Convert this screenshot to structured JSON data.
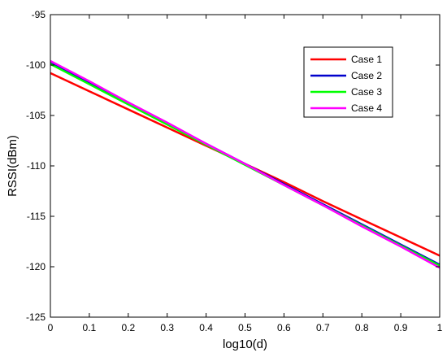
{
  "chart_data": {
    "type": "line",
    "title": "",
    "xlabel": "log10(d)",
    "ylabel": "RSSI(dBm)",
    "xlim": [
      0,
      1
    ],
    "ylim": [
      -125,
      -95
    ],
    "x_ticks": [
      0,
      0.1,
      0.2,
      0.3,
      0.4,
      0.5,
      0.6,
      0.7,
      0.8,
      0.9,
      1
    ],
    "x_tick_labels": [
      "0",
      "0.1",
      "0.2",
      "0.3",
      "0.4",
      "0.5",
      "0.6",
      "0.7",
      "0.8",
      "0.9",
      "1"
    ],
    "y_ticks": [
      -95,
      -100,
      -105,
      -110,
      -115,
      -120,
      -125
    ],
    "y_tick_labels": [
      "-95",
      "-100",
      "-105",
      "-110",
      "-115",
      "-120",
      "-125"
    ],
    "grid": false,
    "legend_position": "top-right",
    "x": [
      0,
      0.1,
      0.2,
      0.3,
      0.4,
      0.5,
      0.6,
      0.7,
      0.8,
      0.9,
      1
    ],
    "series": [
      {
        "name": "Case 1",
        "color": "#ff0000",
        "values": [
          -100.8,
          -102.6,
          -104.4,
          -106.2,
          -108.0,
          -109.8,
          -111.6,
          -113.5,
          -115.3,
          -117.1,
          -118.9
        ]
      },
      {
        "name": "Case 2",
        "color": "#0000cc",
        "values": [
          -99.8,
          -101.8,
          -103.8,
          -105.8,
          -107.8,
          -109.8,
          -111.8,
          -113.8,
          -115.8,
          -117.8,
          -119.8
        ]
      },
      {
        "name": "Case 3",
        "color": "#00ff00",
        "values": [
          -99.9,
          -101.9,
          -103.9,
          -105.9,
          -107.9,
          -109.9,
          -111.9,
          -113.9,
          -115.9,
          -117.9,
          -119.9
        ]
      },
      {
        "name": "Case 4",
        "color": "#ff00ff",
        "values": [
          -99.6,
          -101.6,
          -103.7,
          -105.7,
          -107.8,
          -109.8,
          -111.9,
          -113.9,
          -116.0,
          -118.0,
          -120.1
        ]
      }
    ]
  }
}
